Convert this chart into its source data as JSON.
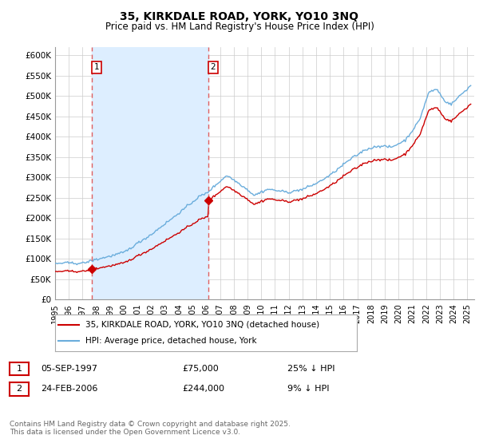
{
  "title": "35, KIRKDALE ROAD, YORK, YO10 3NQ",
  "subtitle": "Price paid vs. HM Land Registry's House Price Index (HPI)",
  "title_fontsize": 10,
  "subtitle_fontsize": 8.5,
  "ylabel_ticks": [
    "£0",
    "£50K",
    "£100K",
    "£150K",
    "£200K",
    "£250K",
    "£300K",
    "£350K",
    "£400K",
    "£450K",
    "£500K",
    "£550K",
    "£600K"
  ],
  "ytick_values": [
    0,
    50000,
    100000,
    150000,
    200000,
    250000,
    300000,
    350000,
    400000,
    450000,
    500000,
    550000,
    600000
  ],
  "ylim": [
    0,
    620000
  ],
  "xlim_start": 1995.25,
  "xlim_end": 2025.5,
  "purchase1_x": 1997.68,
  "purchase1_y": 75000,
  "purchase1_label": "1",
  "purchase2_x": 2006.14,
  "purchase2_y": 244000,
  "purchase2_label": "2",
  "vline1_x": 1997.68,
  "vline2_x": 2006.14,
  "hpi_color": "#6aaddc",
  "price_color": "#cc0000",
  "vline_color": "#e06060",
  "shade_color": "#ddeeff",
  "grid_color": "#cccccc",
  "background_color": "#ffffff",
  "legend_label_price": "35, KIRKDALE ROAD, YORK, YO10 3NQ (detached house)",
  "legend_label_hpi": "HPI: Average price, detached house, York",
  "annotation1_date": "05-SEP-1997",
  "annotation1_price": "£75,000",
  "annotation1_hpi": "25% ↓ HPI",
  "annotation2_date": "24-FEB-2006",
  "annotation2_price": "£244,000",
  "annotation2_hpi": "9% ↓ HPI",
  "footer": "Contains HM Land Registry data © Crown copyright and database right 2025.\nThis data is licensed under the Open Government Licence v3.0.",
  "xtick_years": [
    1995,
    1996,
    1997,
    1998,
    1999,
    2000,
    2001,
    2002,
    2003,
    2004,
    2005,
    2006,
    2007,
    2008,
    2009,
    2010,
    2011,
    2012,
    2013,
    2014,
    2015,
    2016,
    2017,
    2018,
    2019,
    2020,
    2021,
    2022,
    2023,
    2024,
    2025
  ]
}
